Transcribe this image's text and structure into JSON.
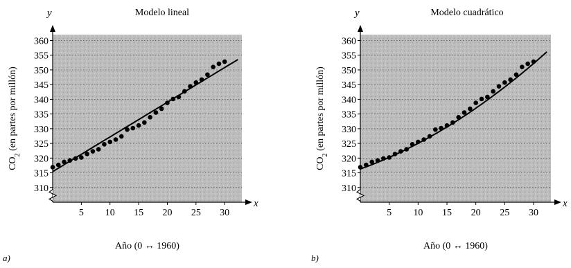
{
  "chart_data": [
    {
      "type": "scatter",
      "panel_label": "a)",
      "title": "Modelo lineal",
      "xlabel": "Año (0 ↔ 1960)",
      "ylabel_prefix": "CO",
      "ylabel_sub": "2",
      "ylabel_suffix": " (en partes por millón)",
      "x_var": "x",
      "y_var": "y",
      "xlim": [
        0,
        33
      ],
      "ylim": [
        305,
        362
      ],
      "axis_break": true,
      "grid": true,
      "background": "#b9b9b9",
      "xticks": [
        5,
        10,
        15,
        20,
        25,
        30
      ],
      "yticks": [
        310,
        315,
        320,
        325,
        330,
        335,
        340,
        345,
        350,
        355,
        360
      ],
      "series": [
        {
          "kind": "points",
          "x": [
            0,
            1,
            2,
            3,
            4,
            5,
            6,
            7,
            8,
            9,
            10,
            11,
            12,
            13,
            14,
            15,
            16,
            17,
            18,
            19,
            20,
            21,
            22,
            23,
            24,
            25,
            26,
            27,
            28,
            29,
            30
          ],
          "y": [
            316.9,
            317.7,
            318.7,
            319.2,
            319.9,
            320.2,
            321.4,
            322.3,
            323.0,
            324.7,
            325.5,
            326.3,
            327.4,
            329.7,
            330.2,
            331.1,
            332.1,
            333.9,
            335.5,
            336.8,
            338.8,
            340.1,
            340.8,
            342.7,
            344.4,
            345.7,
            346.7,
            348.4,
            351.0,
            352.1,
            352.8
          ]
        },
        {
          "kind": "curve",
          "model": "linear",
          "coefficients": [
            315.4,
            1.18
          ]
        }
      ]
    },
    {
      "type": "scatter",
      "panel_label": "b)",
      "title": "Modelo cuadrático",
      "xlabel": "Año (0 ↔ 1960)",
      "ylabel_prefix": "CO",
      "ylabel_sub": "2",
      "ylabel_suffix": " (en partes por millón)",
      "x_var": "x",
      "y_var": "y",
      "xlim": [
        0,
        33
      ],
      "ylim": [
        305,
        362
      ],
      "axis_break": true,
      "grid": true,
      "background": "#b9b9b9",
      "xticks": [
        5,
        10,
        15,
        20,
        25,
        30
      ],
      "yticks": [
        310,
        315,
        320,
        325,
        330,
        335,
        340,
        345,
        350,
        355,
        360
      ],
      "series": [
        {
          "kind": "points",
          "x": [
            0,
            1,
            2,
            3,
            4,
            5,
            6,
            7,
            8,
            9,
            10,
            11,
            12,
            13,
            14,
            15,
            16,
            17,
            18,
            19,
            20,
            21,
            22,
            23,
            24,
            25,
            26,
            27,
            28,
            29,
            30
          ],
          "y": [
            316.9,
            317.7,
            318.7,
            319.2,
            319.9,
            320.2,
            321.4,
            322.3,
            323.0,
            324.7,
            325.5,
            326.3,
            327.4,
            329.7,
            330.2,
            331.1,
            332.1,
            333.9,
            335.5,
            336.8,
            338.8,
            340.1,
            340.8,
            342.7,
            344.4,
            345.7,
            346.7,
            348.4,
            351.0,
            352.1,
            352.8
          ]
        },
        {
          "kind": "curve",
          "model": "quadratic",
          "coefficients": [
            316.3,
            0.71,
            0.0162
          ]
        }
      ]
    }
  ]
}
